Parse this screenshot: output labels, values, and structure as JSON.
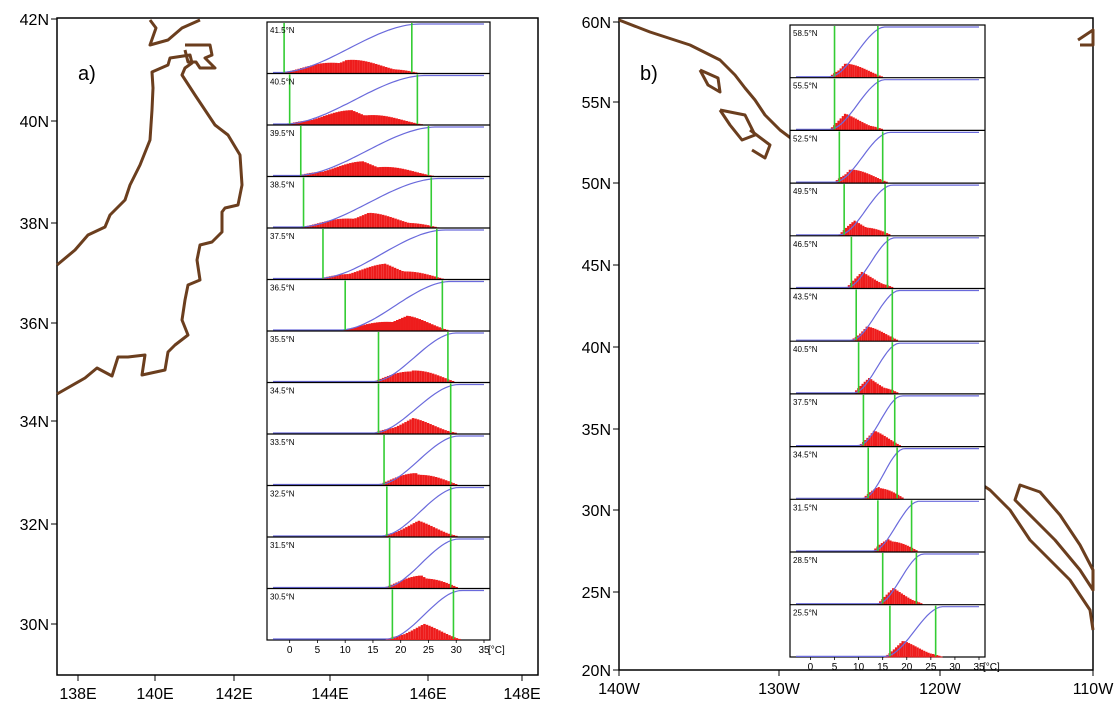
{
  "colors": {
    "coast": "#6b3e1e",
    "histogram": "#ee1c1c",
    "cdf": "#6a6adc",
    "bounds": "#33cc33",
    "frame": "#000000"
  },
  "panels": [
    {
      "id": "a",
      "label": "a)",
      "map": {
        "x_ticks": [
          "138E",
          "140E",
          "142E",
          "144E",
          "146E",
          "148E"
        ],
        "y_ticks": [
          "30N",
          "32N",
          "34N",
          "36N",
          "38N",
          "40N",
          "42N"
        ],
        "x_range_deg": [
          138,
          148
        ],
        "y_range_deg": [
          29,
          42
        ]
      },
      "inset": {
        "x_ticks": [
          "0",
          "5",
          "10",
          "15",
          "20",
          "25",
          "30",
          "35"
        ],
        "x_unit": "[°C]",
        "x_range": [
          -3,
          35
        ],
        "rows": [
          {
            "lat": "41.5°N",
            "lower": -1,
            "upper": 22,
            "mode": 10
          },
          {
            "lat": "40.5°N",
            "lower": 0,
            "upper": 23,
            "mode": 11
          },
          {
            "lat": "39.5°N",
            "lower": 2,
            "upper": 25,
            "mode": 13
          },
          {
            "lat": "38.5°N",
            "lower": 2.5,
            "upper": 25.5,
            "mode": 14
          },
          {
            "lat": "37.5°N",
            "lower": 6,
            "upper": 26.5,
            "mode": 17
          },
          {
            "lat": "36.5°N",
            "lower": 10,
            "upper": 27.5,
            "mode": 21
          },
          {
            "lat": "35.5°N",
            "lower": 16,
            "upper": 28.5,
            "mode": 22
          },
          {
            "lat": "34.5°N",
            "lower": 16,
            "upper": 29,
            "mode": 22
          },
          {
            "lat": "33.5°N",
            "lower": 17,
            "upper": 29,
            "mode": 22.5
          },
          {
            "lat": "32.5°N",
            "lower": 17.5,
            "upper": 29,
            "mode": 23
          },
          {
            "lat": "31.5°N",
            "lower": 18,
            "upper": 29,
            "mode": 23.5
          },
          {
            "lat": "30.5°N",
            "lower": 18.5,
            "upper": 29.5,
            "mode": 24
          }
        ]
      }
    },
    {
      "id": "b",
      "label": "b)",
      "map": {
        "x_ticks": [
          "140W",
          "130W",
          "120W",
          "110W"
        ],
        "y_ticks": [
          "20N",
          "25N",
          "30N",
          "35N",
          "40N",
          "45N",
          "50N",
          "55N",
          "60N"
        ],
        "x_range_deg": [
          -140,
          -110
        ],
        "y_range_deg": [
          20,
          60
        ]
      },
      "inset": {
        "x_ticks": [
          "0",
          "5",
          "10",
          "15",
          "20",
          "25",
          "30",
          "35"
        ],
        "x_unit": "[°C]",
        "x_range": [
          -3,
          35
        ],
        "rows": [
          {
            "lat": "58.5°N",
            "lower": 5,
            "upper": 14,
            "mode": 7
          },
          {
            "lat": "55.5°N",
            "lower": 5,
            "upper": 14,
            "mode": 7
          },
          {
            "lat": "52.5°N",
            "lower": 6,
            "upper": 15,
            "mode": 8
          },
          {
            "lat": "49.5°N",
            "lower": 7,
            "upper": 15.5,
            "mode": 9
          },
          {
            "lat": "46.5°N",
            "lower": 8.5,
            "upper": 16,
            "mode": 10.5
          },
          {
            "lat": "43.5°N",
            "lower": 9.5,
            "upper": 17,
            "mode": 11.5
          },
          {
            "lat": "40.5°N",
            "lower": 10,
            "upper": 17,
            "mode": 12
          },
          {
            "lat": "37.5°N",
            "lower": 11,
            "upper": 17.5,
            "mode": 13
          },
          {
            "lat": "34.5°N",
            "lower": 12,
            "upper": 18,
            "mode": 14
          },
          {
            "lat": "31.5°N",
            "lower": 14,
            "upper": 21,
            "mode": 16
          },
          {
            "lat": "28.5°N",
            "lower": 15,
            "upper": 22,
            "mode": 17
          },
          {
            "lat": "25.5°N",
            "lower": 16.5,
            "upper": 26,
            "mode": 19
          }
        ]
      }
    }
  ],
  "chart_data": [
    {
      "type": "bar",
      "title": "",
      "xlabel": "[°C]",
      "ylabel": "",
      "xlim": [
        -3,
        35
      ],
      "categories": [
        "41.5°N",
        "40.5°N",
        "39.5°N",
        "38.5°N",
        "37.5°N",
        "36.5°N",
        "35.5°N",
        "34.5°N",
        "33.5°N",
        "32.5°N",
        "31.5°N",
        "30.5°N"
      ],
      "series": [
        {
          "name": "lower",
          "values": [
            -1,
            0,
            2,
            2.5,
            6,
            10,
            16,
            16,
            17,
            17.5,
            18,
            18.5
          ]
        },
        {
          "name": "upper",
          "values": [
            22,
            23,
            25,
            25.5,
            26.5,
            27.5,
            28.5,
            29,
            29,
            29,
            29,
            29.5
          ]
        }
      ]
    },
    {
      "type": "bar",
      "title": "",
      "xlabel": "[°C]",
      "ylabel": "",
      "xlim": [
        -3,
        35
      ],
      "categories": [
        "58.5°N",
        "55.5°N",
        "52.5°N",
        "49.5°N",
        "46.5°N",
        "43.5°N",
        "40.5°N",
        "37.5°N",
        "34.5°N",
        "31.5°N",
        "28.5°N",
        "25.5°N"
      ],
      "series": [
        {
          "name": "lower",
          "values": [
            5,
            5,
            6,
            7,
            8.5,
            9.5,
            10,
            11,
            12,
            14,
            15,
            16.5
          ]
        },
        {
          "name": "upper",
          "values": [
            14,
            14,
            15,
            15.5,
            16,
            17,
            17,
            17.5,
            18,
            21,
            22,
            26
          ]
        }
      ]
    }
  ]
}
